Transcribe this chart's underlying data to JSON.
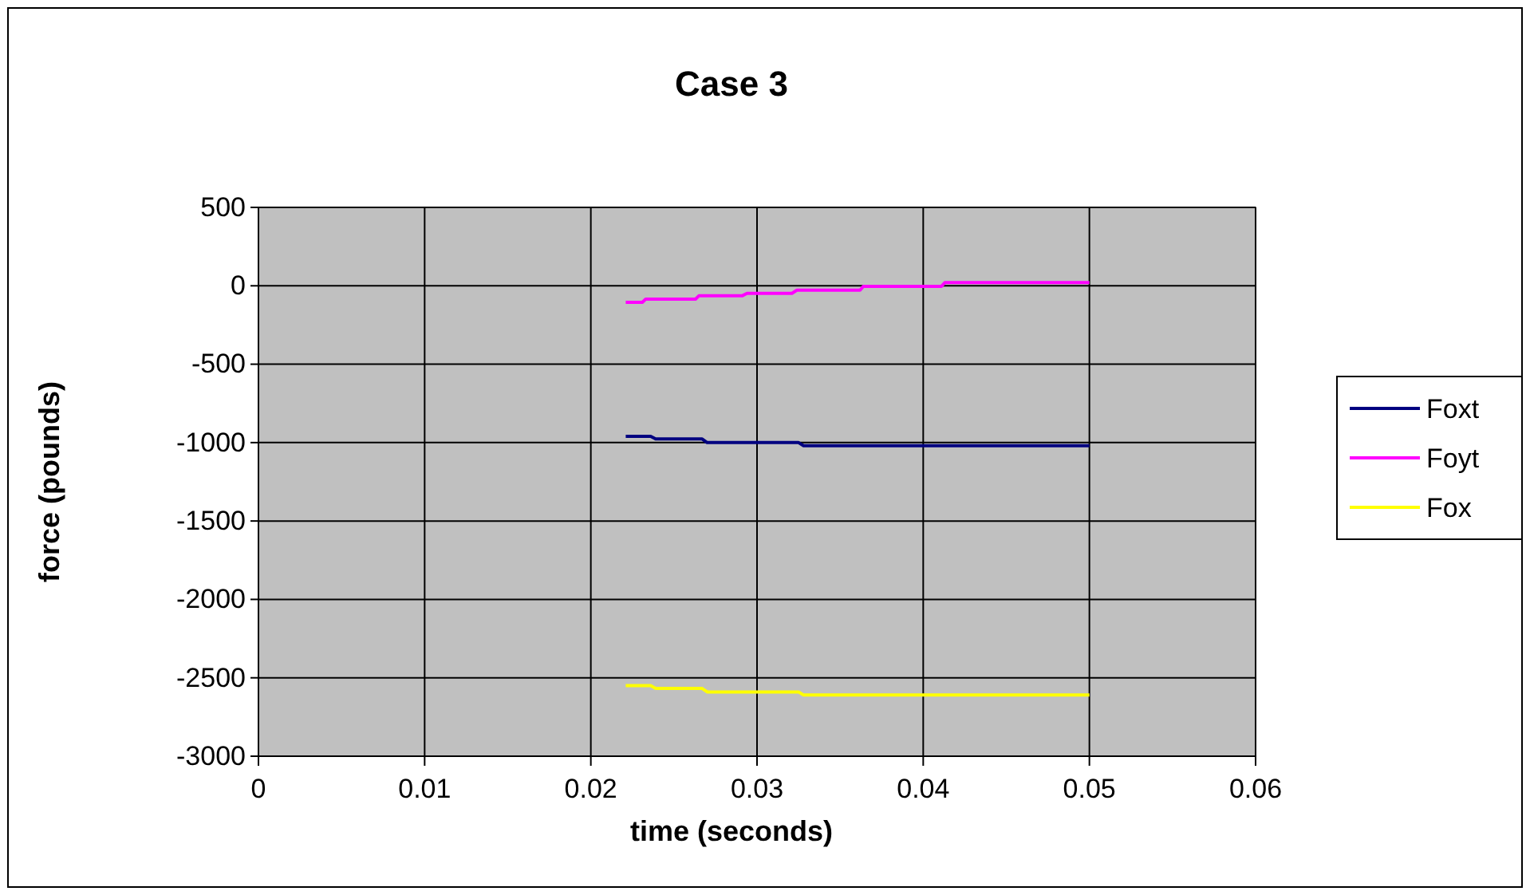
{
  "chart_data": {
    "type": "line",
    "title": "Case 3",
    "xlabel": "time (seconds)",
    "ylabel": "force (pounds)",
    "xlim": [
      0,
      0.06
    ],
    "xticks": [
      0,
      0.01,
      0.02,
      0.03,
      0.04,
      0.05,
      0.06
    ],
    "ylim": [
      -3000,
      500
    ],
    "yticks": [
      -3000,
      -2500,
      -2000,
      -1500,
      -1000,
      -500,
      0,
      500
    ],
    "grid": true,
    "legend": "right",
    "marker": "none",
    "line_style": "solid",
    "series": [
      {
        "name": "Foxt",
        "color": "#000080",
        "x": [
          0.0221,
          0.0236,
          0.0239,
          0.0267,
          0.027,
          0.0325,
          0.0328,
          0.05
        ],
        "values": [
          -960,
          -960,
          -977,
          -977,
          -1000,
          -1000,
          -1020,
          -1020
        ]
      },
      {
        "name": "Foyt",
        "color": "#ff00ff",
        "x": [
          0.0221,
          0.0231,
          0.0233,
          0.0263,
          0.0265,
          0.0291,
          0.0294,
          0.0321,
          0.0324,
          0.0362,
          0.0364,
          0.0411,
          0.0413,
          0.05
        ],
        "values": [
          -105,
          -105,
          -85,
          -85,
          -64,
          -64,
          -48,
          -48,
          -28,
          -28,
          -3,
          -3,
          20,
          20
        ]
      },
      {
        "name": "Fox",
        "color": "#ffff00",
        "x": [
          0.0221,
          0.0236,
          0.0239,
          0.0267,
          0.027,
          0.0325,
          0.0328,
          0.05
        ],
        "values": [
          -2550,
          -2550,
          -2568,
          -2568,
          -2590,
          -2590,
          -2610,
          -2610
        ]
      }
    ]
  }
}
